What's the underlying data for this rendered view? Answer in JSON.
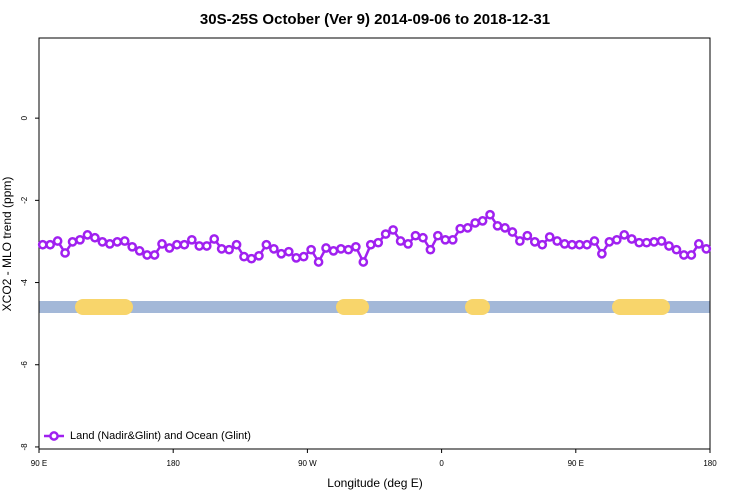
{
  "chart_data": {
    "type": "line",
    "title": "30S-25S October (Ver 9)   2014-09-06 to 2018-12-31",
    "x_label": "Longitude (deg E)",
    "y_label": "XCO2 - MLO trend (ppm)",
    "xlim": [
      90,
      540
    ],
    "ylim": [
      -8.05,
      1.95
    ],
    "xticks": [
      {
        "value": 90,
        "label": "90 E"
      },
      180,
      {
        "value": 270,
        "label": "90 W"
      },
      {
        "value": 360,
        "label": "0"
      },
      {
        "value": 450,
        "label": "90 E"
      },
      {
        "value": 540,
        "label": "180"
      }
    ],
    "yticks": [
      0,
      -2,
      -4,
      -6,
      -8
    ],
    "legend_position": "bottom-left",
    "x": [
      92.5,
      97.5,
      102.5,
      107.5,
      112.5,
      117.5,
      122.5,
      127.5,
      132.5,
      137.5,
      142.5,
      147.5,
      152.5,
      157.5,
      162.5,
      167.5,
      172.5,
      177.5,
      182.5,
      187.5,
      192.5,
      197.5,
      202.5,
      207.5,
      212.5,
      217.5,
      222.5,
      227.5,
      232.5,
      237.5,
      242.5,
      247.5,
      252.5,
      257.5,
      262.5,
      267.5,
      272.5,
      277.5,
      282.5,
      287.5,
      292.5,
      297.5,
      302.5,
      307.5,
      312.5,
      317.5,
      322.5,
      327.5,
      332.5,
      337.5,
      342.5,
      347.5,
      352.5,
      357.5,
      362.5,
      367.5,
      372.5,
      377.5,
      382.5,
      387.5,
      392.5,
      397.5,
      402.5,
      407.5,
      412.5,
      417.5,
      422.5,
      427.5,
      432.5,
      437.5,
      442.5,
      447.5,
      452.5,
      457.5,
      462.5,
      467.5,
      472.5,
      477.5,
      482.5,
      487.5,
      492.5,
      497.5,
      502.5,
      507.5,
      512.5,
      517.5,
      522.5,
      527.5,
      532.5,
      537.5
    ],
    "series": [
      {
        "name": "Land (Nadir&Glint) and Ocean (Glint)",
        "color": "#a020f0",
        "values": [
          -3.08,
          -3.08,
          -2.99,
          -3.28,
          -3.01,
          -2.96,
          -2.84,
          -2.91,
          -3.01,
          -3.06,
          -3.01,
          -2.99,
          -3.13,
          -3.23,
          -3.33,
          -3.33,
          -3.06,
          -3.16,
          -3.08,
          -3.08,
          -2.96,
          -3.11,
          -3.11,
          -2.94,
          -3.18,
          -3.2,
          -3.08,
          -3.37,
          -3.42,
          -3.35,
          -3.08,
          -3.18,
          -3.3,
          -3.25,
          -3.4,
          -3.37,
          -3.2,
          -3.5,
          -3.16,
          -3.23,
          -3.18,
          -3.2,
          -3.13,
          -3.5,
          -3.08,
          -3.03,
          -2.82,
          -2.72,
          -2.99,
          -3.06,
          -2.86,
          -2.91,
          -3.2,
          -2.86,
          -2.96,
          -2.96,
          -2.69,
          -2.67,
          -2.55,
          -2.5,
          -2.35,
          -2.62,
          -2.67,
          -2.77,
          -2.99,
          -2.86,
          -3.01,
          -3.08,
          -2.89,
          -2.99,
          -3.06,
          -3.08,
          -3.08,
          -3.08,
          -2.99,
          -3.3,
          -3.01,
          -2.96,
          -2.84,
          -2.94,
          -3.03,
          -3.03,
          -3.01,
          -2.99,
          -3.11,
          -3.2,
          -3.33,
          -3.33,
          -3.06,
          -3.18
        ]
      }
    ]
  }
}
